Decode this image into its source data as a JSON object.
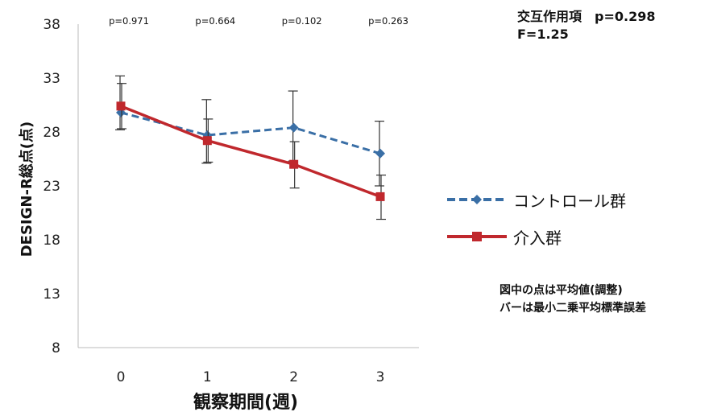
{
  "chart_data": {
    "type": "line",
    "x": [
      0,
      1,
      2,
      3
    ],
    "xlabel": "観察期間(週)",
    "ylabel": "DESIGN-R総点(点)",
    "ylim": [
      8,
      38
    ],
    "yticks": [
      8,
      13,
      18,
      23,
      28,
      33,
      38
    ],
    "xticks": [
      "0",
      "1",
      "2",
      "3"
    ],
    "grid": false,
    "legend_position": "right",
    "p_values": [
      "p=0.971",
      "p=0.664",
      "p=0.102",
      "p=0.263"
    ],
    "interaction": {
      "label": "交互作用項　p=0.298",
      "f": "F=1.25"
    },
    "note": [
      "図中の点は平均値(調整)",
      "バーは最小二乗平均標準誤差"
    ],
    "series": [
      {
        "name": "コントロール群",
        "values": [
          29.8,
          27.7,
          28.4,
          26.0
        ],
        "error_lower": [
          28.2,
          25.1,
          25.3,
          23.0
        ],
        "error_upper": [
          33.2,
          31.0,
          31.8,
          29.0
        ],
        "color": "#3a6fa6",
        "style": "dashed",
        "marker": "diamond"
      },
      {
        "name": "介入群",
        "values": [
          30.4,
          27.2,
          25.0,
          22.0
        ],
        "error_lower": [
          28.3,
          25.2,
          22.8,
          19.9
        ],
        "error_upper": [
          32.5,
          29.2,
          27.1,
          24.0
        ],
        "color": "#c0282d",
        "style": "solid",
        "marker": "square"
      }
    ]
  }
}
